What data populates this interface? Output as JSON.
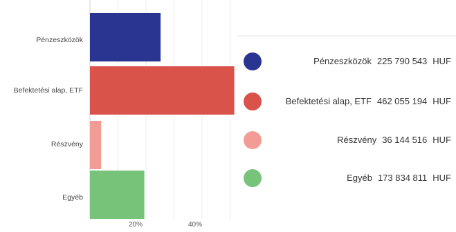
{
  "chart_data": {
    "type": "bar",
    "orientation": "horizontal",
    "categories": [
      "Pénzeszközök",
      "Befektetési alap, ETF",
      "Részvény",
      "Egyéb"
    ],
    "values": [
      225790543,
      462055194,
      36144516,
      173834811
    ],
    "percent_values": [
      25.2,
      51.5,
      4.0,
      19.4
    ],
    "colors": [
      "#2a3491",
      "#d9534a",
      "#f39c96",
      "#77c37a"
    ],
    "xtick_labels": [
      "20%",
      "40%"
    ],
    "xticks": [
      20,
      40
    ],
    "grid": true,
    "legend_position": "right",
    "currency": "HUF",
    "legend": [
      {
        "name": "Pénzeszközök",
        "amount": "225 790 543",
        "unit": "HUF",
        "color": "#2a3491"
      },
      {
        "name": "Befektetési alap, ETF",
        "amount": "462 055 194",
        "unit": "HUF",
        "color": "#d9534a"
      },
      {
        "name": "Részvény",
        "amount": "36 144 516",
        "unit": "HUF",
        "color": "#f39c96"
      },
      {
        "name": "Egyéb",
        "amount": "173 834 811",
        "unit": "HUF",
        "color": "#77c37a"
      }
    ]
  }
}
